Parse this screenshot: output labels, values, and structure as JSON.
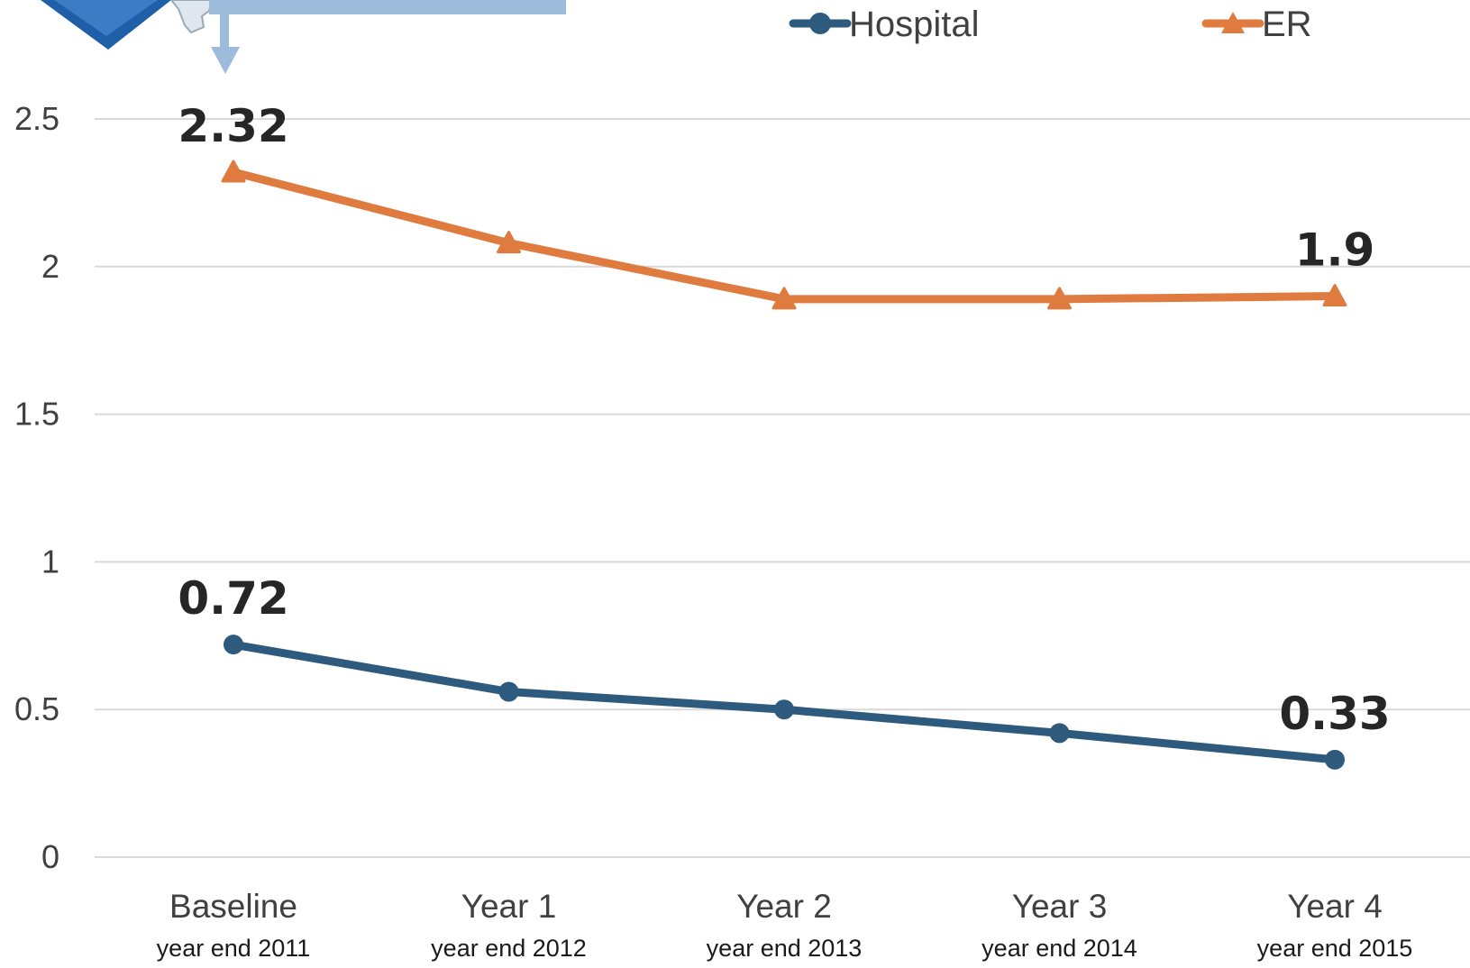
{
  "chart_data": {
    "type": "line",
    "categories": [
      "Baseline",
      "Year 1",
      "Year 2",
      "Year 3",
      "Year 4"
    ],
    "category_sublabels": [
      "year end 2011",
      "year end 2012",
      "year end 2013",
      "year end 2014",
      "year end 2015"
    ],
    "series": [
      {
        "name": "Hospital",
        "color": "#2e5a7e",
        "marker": "circle",
        "values": [
          0.72,
          0.56,
          0.5,
          0.42,
          0.33
        ],
        "data_labels": [
          "0.72",
          null,
          null,
          null,
          "0.33"
        ]
      },
      {
        "name": "ER",
        "color": "#e07b3f",
        "marker": "triangle",
        "values": [
          2.32,
          2.08,
          1.89,
          1.89,
          1.9
        ],
        "data_labels": [
          "2.32",
          null,
          null,
          null,
          "1.9"
        ]
      }
    ],
    "yticks": [
      "0",
      "0.5",
      "1",
      "1.5",
      "2",
      "2.5"
    ],
    "ylim": [
      0,
      2.5
    ],
    "grid": true,
    "legend_position": "top-right"
  },
  "colors": {
    "gridline": "#d9d9d9",
    "callout_fill": "#9dbcdc",
    "logo_blue": "#1f5fa8"
  }
}
